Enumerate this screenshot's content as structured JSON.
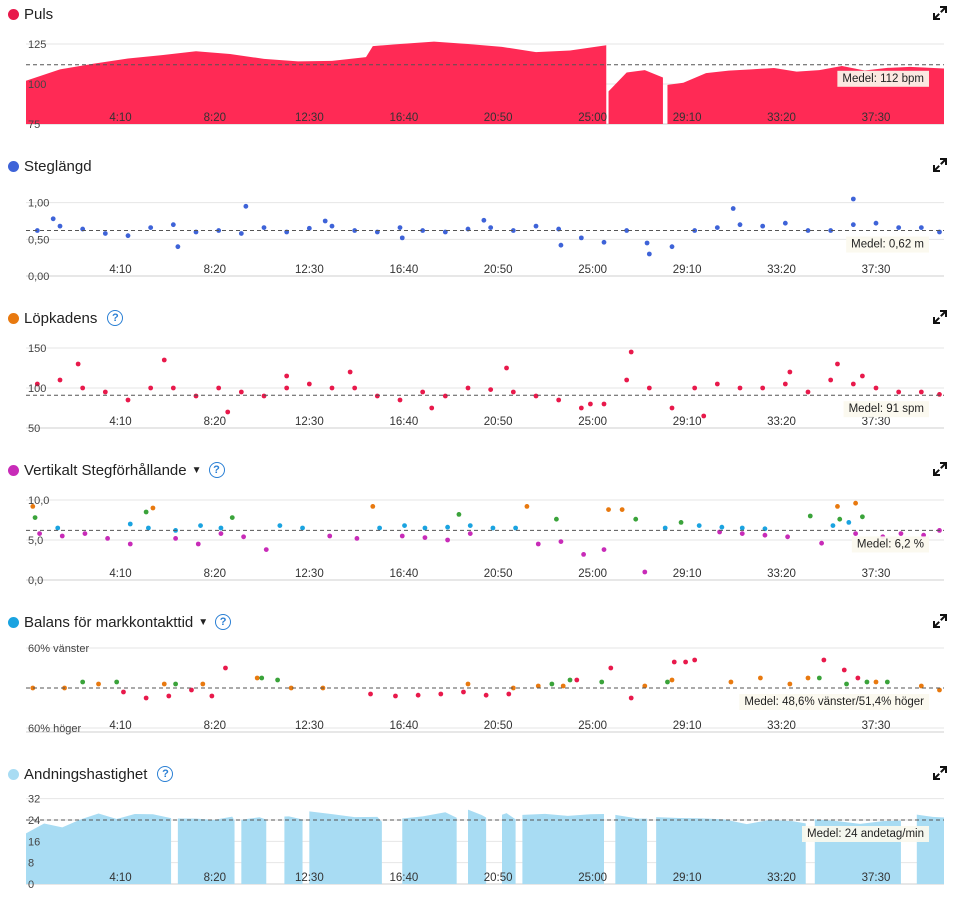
{
  "x_ticks": [
    "4:10",
    "8:20",
    "12:30",
    "16:40",
    "20:50",
    "25:00",
    "29:10",
    "33:20",
    "37:30"
  ],
  "panels": [
    {
      "id": "puls",
      "title": "Puls",
      "color": "#e8194b",
      "help": false,
      "dropdown": false,
      "avg_label": "Medel: 112 bpm",
      "chart_data": {
        "type": "area",
        "x_unit": "min",
        "xlim": [
          0,
          40.5
        ],
        "ylim": [
          75,
          130
        ],
        "yticks": [
          "125",
          "100",
          "75"
        ],
        "ytick_values": [
          125,
          100,
          75
        ],
        "avg": 112,
        "fill": "#ff2a55",
        "segments": [
          {
            "x": [
              0,
              1.5,
              3,
              4.5,
              6,
              7.5,
              9,
              10.5,
              12,
              13.5,
              15,
              15.3,
              16.5,
              18,
              19.5,
              21,
              22.5,
              24,
              25.6
            ],
            "y": [
              102,
              108,
              112,
              116,
              118,
              120,
              119,
              117,
              115,
              114,
              116,
              125,
              125,
              126,
              124,
              123,
              121,
              122,
              124
            ]
          },
          {
            "x": [
              25.7,
              26.5,
              27.3,
              28.1
            ],
            "y": [
              95,
              107,
              109,
              104
            ]
          },
          {
            "x": [
              28.3,
              29,
              30,
              31,
              32,
              33,
              34,
              35,
              36,
              37,
              38,
              39,
              40.5
            ],
            "y": [
              100,
              102,
              106,
              108,
              109,
              110,
              109,
              108,
              111,
              108,
              110,
              112,
              110
            ]
          }
        ]
      }
    },
    {
      "id": "steglangd",
      "title": "Steglängd",
      "color": "#3e63d8",
      "help": false,
      "dropdown": false,
      "avg_label": "Medel: 0,62 m",
      "chart_data": {
        "type": "scatter",
        "x_unit": "min",
        "xlim": [
          0,
          40.5
        ],
        "ylim": [
          0,
          1.2
        ],
        "yticks": [
          "1,00",
          "0,50",
          "0,00"
        ],
        "ytick_values": [
          1.0,
          0.5,
          0.0
        ],
        "avg": 0.62,
        "series": [
          {
            "color": "#3e63d8",
            "x": [
              0.5,
              1.5,
              2.5,
              3.5,
              4.5,
              5.5,
              6.5,
              7.5,
              8.5,
              9.5,
              10.5,
              11.5,
              12.5,
              13.5,
              14.5,
              15.5,
              16.5,
              17.5,
              18.5,
              19.5,
              20.5,
              21.5,
              22.5,
              23.5,
              24.5,
              25.5,
              26.5,
              27.5,
              28.5,
              29.5,
              30.5,
              31.5,
              32.5,
              33.5,
              34.5,
              35.5,
              36.5,
              37.5,
              38.5,
              39.5,
              40.3,
              1.2,
              6.7,
              9.7,
              13.2,
              16.6,
              20.2,
              23.6,
              27.4,
              31.2,
              36.5
            ],
            "y": [
              0.62,
              0.68,
              0.64,
              0.58,
              0.55,
              0.66,
              0.7,
              0.6,
              0.62,
              0.58,
              0.66,
              0.6,
              0.65,
              0.68,
              0.62,
              0.6,
              0.66,
              0.62,
              0.6,
              0.64,
              0.66,
              0.62,
              0.68,
              0.64,
              0.52,
              0.46,
              0.62,
              0.3,
              0.4,
              0.62,
              0.66,
              0.7,
              0.68,
              0.72,
              0.62,
              0.62,
              0.7,
              0.72,
              0.66,
              0.66,
              0.6,
              0.78,
              0.4,
              0.95,
              0.75,
              0.52,
              0.76,
              0.42,
              0.45,
              0.92,
              1.05
            ]
          }
        ]
      }
    },
    {
      "id": "lopkadens",
      "title": "Löpkadens",
      "color": "#e8790f",
      "help": true,
      "dropdown": false,
      "avg_label": "Medel: 91 spm",
      "chart_data": {
        "type": "scatter",
        "x_unit": "min",
        "xlim": [
          0,
          40.5
        ],
        "ylim": [
          50,
          160
        ],
        "yticks": [
          "150",
          "100",
          "50"
        ],
        "ytick_values": [
          150,
          100,
          50
        ],
        "avg": 91,
        "series": [
          {
            "color": "#e8194b",
            "x": [
              0.5,
              1.5,
              2.5,
              3.5,
              4.5,
              5.5,
              6.5,
              7.5,
              8.5,
              9.5,
              10.5,
              11.5,
              12.5,
              13.5,
              14.5,
              15.5,
              16.5,
              17.5,
              18.5,
              19.5,
              20.5,
              21.5,
              22.5,
              23.5,
              24.5,
              25.5,
              26.5,
              27.5,
              28.5,
              29.5,
              30.5,
              31.5,
              32.5,
              33.5,
              34.5,
              35.5,
              36.5,
              37.5,
              38.5,
              39.5,
              40.3,
              2.3,
              6.1,
              8.9,
              11.5,
              14.3,
              17.9,
              21.2,
              24.9,
              26.7,
              29.9,
              33.7,
              35.8,
              36.9
            ],
            "y": [
              105,
              110,
              100,
              95,
              85,
              100,
              100,
              90,
              100,
              95,
              90,
              100,
              105,
              100,
              100,
              90,
              85,
              95,
              90,
              100,
              98,
              95,
              90,
              85,
              75,
              80,
              110,
              100,
              75,
              100,
              105,
              100,
              100,
              105,
              95,
              110,
              105,
              100,
              95,
              95,
              92,
              130,
              135,
              70,
              115,
              120,
              75,
              125,
              80,
              145,
              65,
              120,
              130,
              115
            ]
          }
        ]
      }
    },
    {
      "id": "vertikalt",
      "title": "Vertikalt Stegförhållande",
      "color": "#c82bb8",
      "help": true,
      "dropdown": true,
      "avg_label": "Medel: 6,2 %",
      "chart_data": {
        "type": "scatter",
        "x_unit": "min",
        "xlim": [
          0,
          40.5
        ],
        "ylim": [
          0,
          11
        ],
        "yticks": [
          "10,0",
          "5,0",
          "0,0"
        ],
        "ytick_values": [
          10,
          5,
          0
        ],
        "avg": 6.2,
        "series": [
          {
            "color": "#c82bb8",
            "x": [
              0.6,
              1.6,
              2.6,
              3.6,
              4.6,
              6.6,
              7.6,
              8.6,
              9.6,
              10.6,
              13.4,
              14.6,
              16.6,
              17.6,
              18.6,
              19.6,
              22.6,
              23.6,
              24.6,
              25.5,
              27.3,
              30.6,
              31.6,
              32.6,
              33.6,
              35.1,
              36.6,
              37.8,
              38.6,
              39.6,
              40.3
            ],
            "y": [
              5.8,
              5.5,
              5.8,
              5.2,
              4.5,
              5.2,
              4.5,
              5.8,
              5.4,
              3.8,
              5.5,
              5.2,
              5.5,
              5.3,
              5.0,
              5.8,
              4.5,
              4.8,
              3.2,
              3.8,
              1.0,
              6.0,
              5.8,
              5.6,
              5.4,
              4.6,
              5.8,
              5.4,
              5.8,
              5.6,
              6.2
            ]
          },
          {
            "color": "#1aa3e0",
            "x": [
              1.4,
              4.6,
              5.4,
              6.6,
              7.7,
              8.6,
              11.2,
              12.2,
              15.6,
              16.7,
              17.6,
              18.6,
              19.6,
              20.6,
              21.6,
              28.2,
              29.7,
              30.7,
              31.6,
              32.6,
              35.6,
              36.3
            ],
            "y": [
              6.5,
              7.0,
              6.5,
              6.2,
              6.8,
              6.5,
              6.8,
              6.5,
              6.5,
              6.8,
              6.5,
              6.6,
              6.8,
              6.5,
              6.5,
              6.5,
              6.8,
              6.6,
              6.5,
              6.4,
              6.8,
              7.2
            ]
          },
          {
            "color": "#3aa33a",
            "x": [
              0.4,
              5.3,
              9.1,
              19.1,
              23.4,
              26.9,
              28.9,
              34.6,
              35.9,
              36.9
            ],
            "y": [
              7.8,
              8.5,
              7.8,
              8.2,
              7.6,
              7.6,
              7.2,
              8.0,
              7.6,
              7.9
            ]
          },
          {
            "color": "#e8790f",
            "x": [
              0.3,
              5.6,
              15.3,
              22.1,
              25.7,
              26.3,
              35.8,
              36.6
            ],
            "y": [
              9.2,
              9.0,
              9.2,
              9.2,
              8.8,
              8.8,
              9.2,
              9.6
            ]
          }
        ]
      }
    },
    {
      "id": "balans",
      "title": "Balans för markkontakttid",
      "color": "#1aa3e0",
      "help": true,
      "dropdown": true,
      "avg_label": "Medel: 48,6% vänster/51,4% höger",
      "chart_data": {
        "type": "scatter",
        "x_unit": "min",
        "xlim": [
          0,
          40.5
        ],
        "ylim": [
          39,
          61
        ],
        "yticks": [
          "60% vänster",
          "60% höger"
        ],
        "ytick_values": [
          60,
          40
        ],
        "avg": 50,
        "series": [
          {
            "color": "#e8194b",
            "x": [
              4.3,
              5.3,
              6.3,
              7.3,
              8.2,
              8.8,
              15.2,
              16.3,
              17.3,
              18.3,
              19.3,
              20.3,
              21.3,
              24.3,
              25.8,
              26.7,
              28.6,
              29.1,
              29.5,
              35.2,
              36.1,
              36.7
            ],
            "y": [
              49.0,
              47.5,
              48.0,
              49.5,
              48.0,
              55.0,
              48.5,
              48.0,
              48.2,
              48.5,
              49.0,
              48.2,
              48.5,
              52.0,
              55.0,
              47.5,
              56.5,
              56.5,
              57.0,
              57.0,
              54.5,
              52.5
            ]
          },
          {
            "color": "#e8790f",
            "x": [
              0.3,
              1.7,
              3.2,
              6.1,
              7.8,
              10.2,
              11.7,
              13.1,
              19.5,
              21.5,
              22.6,
              23.7,
              27.3,
              28.5,
              31.1,
              32.4,
              33.7,
              34.5,
              37.5,
              39.5,
              40.3
            ],
            "y": [
              50.0,
              50.0,
              51.0,
              51.0,
              51.0,
              52.5,
              50.0,
              50.0,
              51.0,
              50.0,
              50.5,
              50.5,
              50.5,
              52.0,
              51.5,
              52.5,
              51.0,
              52.5,
              51.5,
              50.5,
              49.5
            ]
          },
          {
            "color": "#3aa33a",
            "x": [
              2.5,
              4.0,
              6.6,
              10.4,
              11.1,
              23.2,
              24.0,
              25.4,
              28.3,
              35.0,
              36.2,
              37.1,
              38.0
            ],
            "y": [
              51.5,
              51.5,
              51.0,
              52.5,
              52.0,
              51.0,
              52.0,
              51.5,
              51.5,
              52.5,
              51.0,
              51.5,
              51.5
            ]
          }
        ]
      }
    },
    {
      "id": "andning",
      "title": "Andningshastighet",
      "color": "#a8dcf3",
      "help": true,
      "dropdown": false,
      "avg_label": "Medel: 24 andetag/min",
      "chart_data": {
        "type": "area",
        "x_unit": "min",
        "xlim": [
          0,
          40.5
        ],
        "ylim": [
          0,
          33
        ],
        "yticks": [
          "32",
          "24",
          "16",
          "8",
          "0"
        ],
        "ytick_values": [
          32,
          24,
          16,
          8,
          0
        ],
        "avg": 24,
        "fill": "#a8dcf3",
        "segments": [
          {
            "x": [
              0.0,
              0.8,
              1.6,
              2.4,
              3.2,
              4.0,
              4.8,
              5.6,
              6.4
            ],
            "y": [
              19,
              22,
              22,
              24,
              26,
              25,
              26,
              26,
              25
            ]
          },
          {
            "x": [
              6.7,
              7.5,
              8.3,
              9.1,
              9.2
            ],
            "y": [
              24,
              25,
              24,
              25,
              24
            ]
          },
          {
            "x": [
              9.5,
              10.3,
              10.6
            ],
            "y": [
              24,
              25,
              24
            ]
          },
          {
            "x": [
              11.4,
              11.6,
              12.2
            ],
            "y": [
              26,
              26,
              24
            ]
          },
          {
            "x": [
              12.5,
              13.5,
              14.5,
              15.5,
              15.7
            ],
            "y": [
              27,
              26,
              25,
              26,
              24
            ]
          },
          {
            "x": [
              16.6,
              17.5,
              18.5,
              19.0
            ],
            "y": [
              25,
              26,
              27,
              25
            ]
          },
          {
            "x": [
              19.5,
              20.1,
              20.3
            ],
            "y": [
              28,
              26,
              25
            ]
          },
          {
            "x": [
              21.0,
              21.2,
              21.6
            ],
            "y": [
              26,
              27,
              25
            ]
          },
          {
            "x": [
              21.9,
              22.9,
              23.9,
              24.9,
              25.5
            ],
            "y": [
              26,
              27,
              25,
              26,
              27
            ]
          },
          {
            "x": [
              26.0,
              27.0,
              27.4
            ],
            "y": [
              26,
              25,
              24
            ]
          },
          {
            "x": [
              27.8,
              28.8,
              29.8,
              30.8,
              31.8,
              32.8,
              33.8,
              34.4
            ],
            "y": [
              25,
              25,
              24,
              24,
              23,
              24,
              24,
              23
            ]
          },
          {
            "x": [
              34.8,
              35.8,
              36.8,
              37.8,
              38.6
            ],
            "y": [
              24,
              24,
              23,
              23,
              24
            ]
          },
          {
            "x": [
              39.3,
              40.0,
              40.5
            ],
            "y": [
              26,
              25,
              25
            ]
          }
        ]
      }
    }
  ]
}
